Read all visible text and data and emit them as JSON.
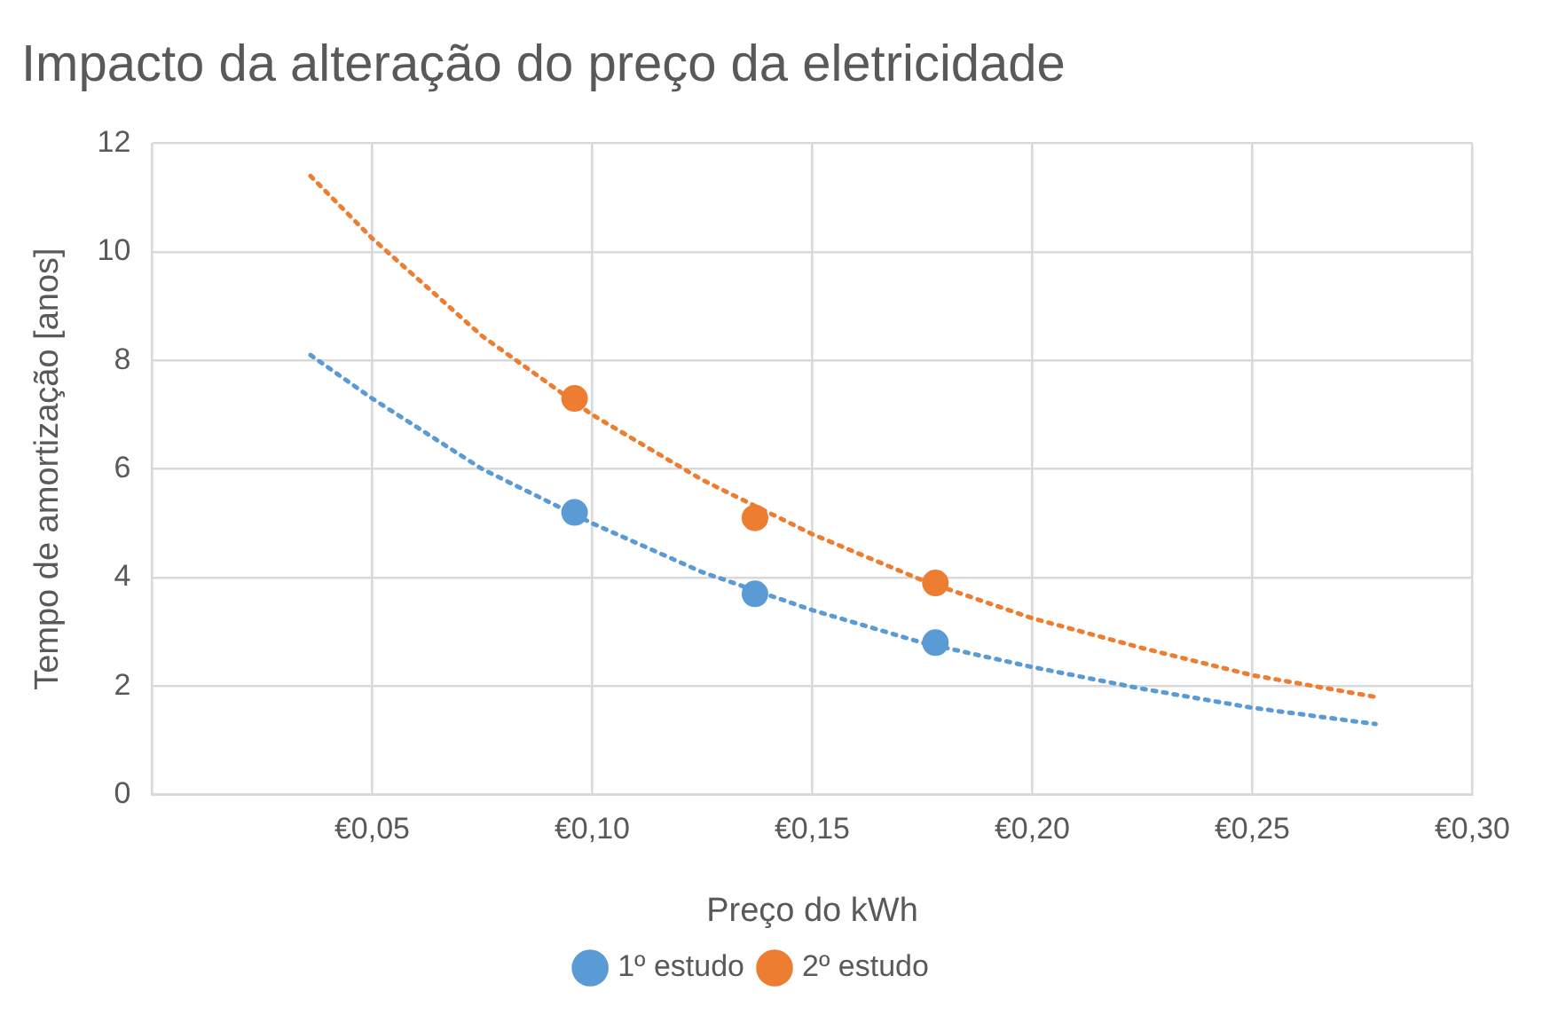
{
  "chart_data": {
    "type": "scatter",
    "title": "Impacto da alteração do preço da eletricidade",
    "xlabel": "Preço do kWh",
    "ylabel": "Tempo de amortização [anos]",
    "series": [
      {
        "name": "1º estudo",
        "color": "#5b9bd5",
        "marker": "circle",
        "x": [
          0.096,
          0.137,
          0.178
        ],
        "values": [
          5.2,
          3.7,
          2.8
        ]
      },
      {
        "name": "2º estudo",
        "color": "#ed7d31",
        "marker": "circle",
        "x": [
          0.096,
          0.137,
          0.178
        ],
        "values": [
          7.3,
          5.1,
          3.9
        ]
      },
      {
        "type": "line",
        "color": "#5b9bd5",
        "marker": "none",
        "line_style": "dotted",
        "x": [
          0.036,
          0.05,
          0.075,
          0.1,
          0.125,
          0.15,
          0.175,
          0.2,
          0.225,
          0.25,
          0.278
        ],
        "values": [
          8.1,
          7.3,
          6.0,
          5.0,
          4.1,
          3.4,
          2.8,
          2.35,
          1.95,
          1.6,
          1.3
        ]
      },
      {
        "type": "line",
        "color": "#ed7d31",
        "marker": "none",
        "line_style": "dotted",
        "x": [
          0.036,
          0.05,
          0.075,
          0.1,
          0.125,
          0.15,
          0.175,
          0.2,
          0.225,
          0.25,
          0.278
        ],
        "values": [
          11.4,
          10.25,
          8.45,
          7.0,
          5.8,
          4.8,
          3.95,
          3.25,
          2.7,
          2.2,
          1.8
        ]
      }
    ],
    "xlim": [
      0,
      0.3
    ],
    "xticks": [
      {
        "value": 0,
        "label": null
      },
      {
        "value": 0.05,
        "label": "€0,05"
      },
      {
        "value": 0.1,
        "label": "€0,10"
      },
      {
        "value": 0.15,
        "label": "€0,15"
      },
      {
        "value": 0.2,
        "label": "€0,20"
      },
      {
        "value": 0.25,
        "label": "€0,25"
      },
      {
        "value": 0.3,
        "label": "€0,30"
      }
    ],
    "ylim": [
      0,
      12
    ],
    "yticks": [
      0,
      2,
      4,
      6,
      8,
      10,
      12
    ],
    "grid": true,
    "legend": "bottom"
  }
}
